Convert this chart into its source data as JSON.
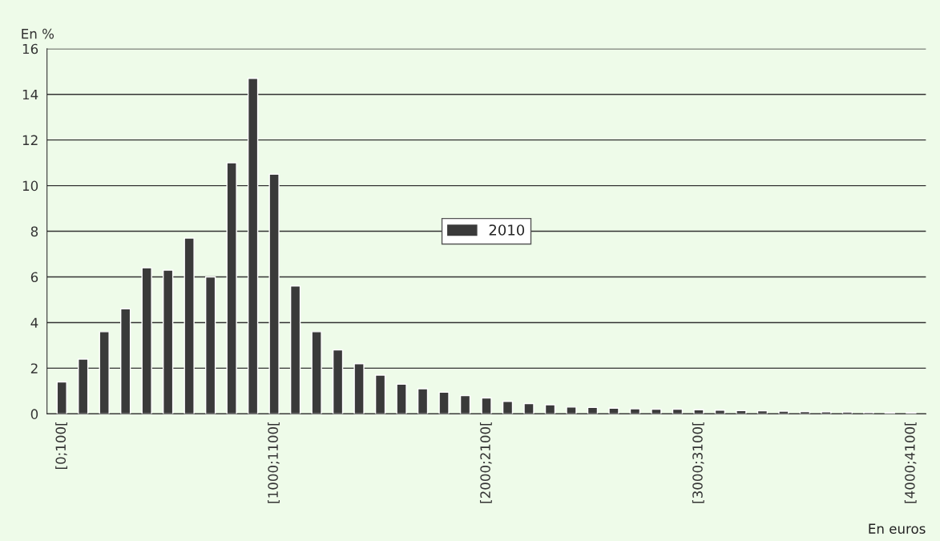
{
  "chart_data": {
    "type": "bar",
    "ylabel": "En %",
    "xlabel": "En euros",
    "categories": [
      "[0;100[",
      null,
      null,
      null,
      null,
      null,
      null,
      null,
      null,
      null,
      "[1000;1100[",
      null,
      null,
      null,
      null,
      null,
      null,
      null,
      null,
      null,
      "[2000;2100[",
      null,
      null,
      null,
      null,
      null,
      null,
      null,
      null,
      null,
      "[3000;3100[",
      null,
      null,
      null,
      null,
      null,
      null,
      null,
      null,
      null,
      "[4000;4100["
    ],
    "series": [
      {
        "name": "2010",
        "color": "#3a3a3a",
        "values": [
          1.4,
          2.4,
          3.6,
          4.6,
          6.4,
          6.3,
          7.7,
          6.0,
          11.0,
          14.7,
          10.5,
          5.6,
          3.6,
          2.8,
          2.2,
          1.7,
          1.3,
          1.1,
          0.95,
          0.8,
          0.7,
          0.55,
          0.45,
          0.4,
          0.3,
          0.28,
          0.25,
          0.22,
          0.2,
          0.2,
          0.18,
          0.16,
          0.14,
          0.13,
          0.12,
          0.1,
          0.09,
          0.08,
          0.06,
          0.05,
          0.05
        ]
      }
    ],
    "ylim": [
      0,
      16
    ],
    "yticks": [
      0,
      2,
      4,
      6,
      8,
      10,
      12,
      14,
      16
    ],
    "grid": "y",
    "legend": "center"
  }
}
